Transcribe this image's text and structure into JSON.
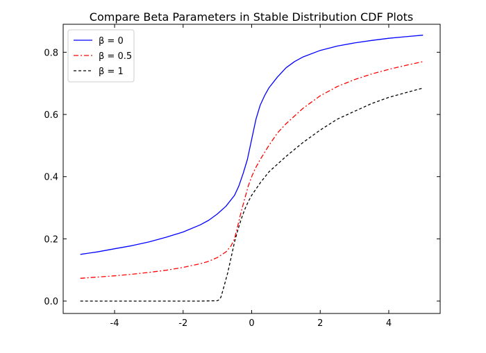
{
  "chart_data": {
    "type": "line",
    "title": "Compare Beta Parameters in Stable Distribution CDF Plots",
    "xlabel": "",
    "ylabel": "",
    "xlim": [
      -5.5,
      5.5
    ],
    "ylim": [
      -0.04,
      0.89
    ],
    "grid": false,
    "legend_position": "top-left",
    "xticks": [
      -4,
      -2,
      0,
      2,
      4
    ],
    "xtick_labels": [
      "-4",
      "-2",
      "0",
      "2",
      "4"
    ],
    "yticks": [
      0.0,
      0.2,
      0.4,
      0.6,
      0.8
    ],
    "ytick_labels": [
      "0.0",
      "0.2",
      "0.4",
      "0.6",
      "0.8"
    ],
    "series": [
      {
        "name": "β = 0",
        "color": "#0000ff",
        "dash": "solid",
        "x": [
          -5,
          -4.5,
          -4,
          -3.5,
          -3,
          -2.5,
          -2,
          -1.5,
          -1.25,
          -1,
          -0.75,
          -0.5,
          -0.375,
          -0.25,
          -0.125,
          0,
          0.125,
          0.25,
          0.375,
          0.5,
          0.75,
          1,
          1.25,
          1.5,
          2,
          2.5,
          3,
          3.5,
          4,
          4.5,
          5
        ],
        "values": [
          0.15,
          0.158,
          0.168,
          0.178,
          0.19,
          0.205,
          0.222,
          0.245,
          0.26,
          0.28,
          0.305,
          0.34,
          0.37,
          0.41,
          0.455,
          0.52,
          0.585,
          0.63,
          0.66,
          0.685,
          0.72,
          0.75,
          0.77,
          0.785,
          0.806,
          0.82,
          0.83,
          0.838,
          0.845,
          0.85,
          0.855
        ]
      },
      {
        "name": "β = 0.5",
        "color": "#ff0000",
        "dash": "dashdot",
        "x": [
          -5,
          -4.5,
          -4,
          -3.5,
          -3,
          -2.5,
          -2,
          -1.5,
          -1.25,
          -1,
          -0.75,
          -0.6,
          -0.5,
          -0.4,
          -0.3,
          -0.2,
          -0.1,
          0,
          0.1,
          0.25,
          0.5,
          0.75,
          1,
          1.5,
          2,
          2.5,
          3,
          3.5,
          4,
          4.5,
          5
        ],
        "values": [
          0.073,
          0.077,
          0.081,
          0.086,
          0.092,
          0.099,
          0.108,
          0.12,
          0.128,
          0.14,
          0.158,
          0.178,
          0.2,
          0.245,
          0.29,
          0.33,
          0.37,
          0.4,
          0.425,
          0.455,
          0.5,
          0.54,
          0.57,
          0.62,
          0.66,
          0.69,
          0.712,
          0.73,
          0.745,
          0.758,
          0.77
        ]
      },
      {
        "name": "β = 1",
        "color": "#000000",
        "dash": "dashed",
        "x": [
          -5,
          -4,
          -3,
          -2,
          -1.5,
          -1,
          -0.95,
          -0.9,
          -0.85,
          -0.8,
          -0.7,
          -0.6,
          -0.5,
          -0.4,
          -0.3,
          -0.2,
          -0.1,
          0,
          0.25,
          0.5,
          0.75,
          1,
          1.5,
          2,
          2.5,
          3,
          3.5,
          4,
          4.5,
          5
        ],
        "values": [
          0.0,
          0.0,
          0.0,
          0.0,
          0.0,
          0.001,
          0.004,
          0.012,
          0.03,
          0.05,
          0.09,
          0.14,
          0.19,
          0.23,
          0.265,
          0.295,
          0.32,
          0.34,
          0.38,
          0.415,
          0.44,
          0.465,
          0.51,
          0.55,
          0.585,
          0.61,
          0.635,
          0.655,
          0.67,
          0.685
        ]
      }
    ]
  }
}
